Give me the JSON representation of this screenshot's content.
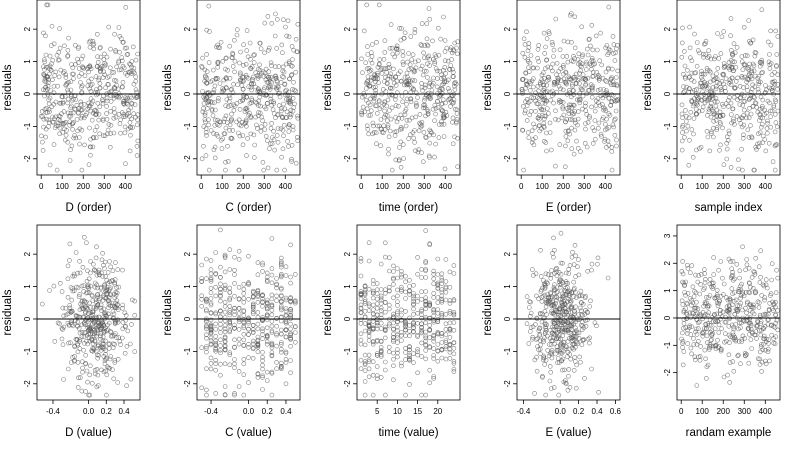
{
  "figure": {
    "rows": 2,
    "cols": 5
  },
  "chart_data": [
    {
      "type": "scatter",
      "xlabel": "D (order)",
      "ylabel": "residuals",
      "xlim": [
        -20,
        470
      ],
      "ylim": [
        -2.5,
        2.9
      ],
      "xticks": [
        0,
        100,
        200,
        300,
        400
      ],
      "xtick_labels": [
        "0",
        "100",
        "200",
        "300",
        "400"
      ],
      "yticks": [
        -2,
        -1,
        0,
        1,
        2
      ],
      "ytick_labels": [
        "-2",
        "-1",
        "0",
        "1",
        "2"
      ],
      "hline": 0,
      "n_points": 460,
      "point_distribution": "uniform-index",
      "seed": 11
    },
    {
      "type": "scatter",
      "xlabel": "C (order)",
      "ylabel": "residuals",
      "xlim": [
        -20,
        470
      ],
      "ylim": [
        -2.5,
        2.9
      ],
      "xticks": [
        0,
        100,
        200,
        300,
        400
      ],
      "xtick_labels": [
        "0",
        "100",
        "200",
        "300",
        "400"
      ],
      "yticks": [
        -2,
        -1,
        0,
        1,
        2
      ],
      "ytick_labels": [
        "-2",
        "-1",
        "0",
        "1",
        "2"
      ],
      "hline": 0,
      "n_points": 460,
      "point_distribution": "uniform-index",
      "seed": 23
    },
    {
      "type": "scatter",
      "xlabel": "time (order)",
      "ylabel": "residuals",
      "xlim": [
        -20,
        470
      ],
      "ylim": [
        -2.5,
        2.9
      ],
      "xticks": [
        0,
        100,
        200,
        300,
        400
      ],
      "xtick_labels": [
        "0",
        "100",
        "200",
        "300",
        "400"
      ],
      "yticks": [
        -2,
        -1,
        0,
        1,
        2
      ],
      "ytick_labels": [
        "-2",
        "-1",
        "0",
        "1",
        "2"
      ],
      "hline": 0,
      "n_points": 460,
      "point_distribution": "uniform-index",
      "seed": 37
    },
    {
      "type": "scatter",
      "xlabel": "E (order)",
      "ylabel": "residuals",
      "xlim": [
        -20,
        470
      ],
      "ylim": [
        -2.5,
        2.9
      ],
      "xticks": [
        0,
        100,
        200,
        300,
        400
      ],
      "xtick_labels": [
        "0",
        "100",
        "200",
        "300",
        "400"
      ],
      "yticks": [
        -2,
        -1,
        0,
        1,
        2
      ],
      "ytick_labels": [
        "-2",
        "-1",
        "0",
        "1",
        "2"
      ],
      "hline": 0,
      "n_points": 460,
      "point_distribution": "uniform-index",
      "seed": 41
    },
    {
      "type": "scatter",
      "xlabel": "sample index",
      "ylabel": "residuals",
      "xlim": [
        -20,
        470
      ],
      "ylim": [
        -2.5,
        2.9
      ],
      "xticks": [
        0,
        100,
        200,
        300,
        400
      ],
      "xtick_labels": [
        "0",
        "100",
        "200",
        "300",
        "400"
      ],
      "yticks": [
        -2,
        -1,
        0,
        1,
        2
      ],
      "ytick_labels": [
        "-2",
        "-1",
        "0",
        "1",
        "2"
      ],
      "hline": 0,
      "n_points": 460,
      "point_distribution": "uniform-index",
      "seed": 53
    },
    {
      "type": "scatter",
      "xlabel": "D (value)",
      "ylabel": "residuals",
      "xlim": [
        -0.58,
        0.58
      ],
      "ylim": [
        -2.5,
        2.9
      ],
      "xticks": [
        -0.4,
        0.0,
        0.2,
        0.4
      ],
      "xtick_labels": [
        "-0.4",
        "0.0",
        "0.2",
        "0.4"
      ],
      "yticks": [
        -2,
        -1,
        0,
        1,
        2
      ],
      "ytick_labels": [
        "-2",
        "-1",
        "0",
        "1",
        "2"
      ],
      "hline": 0,
      "n_points": 460,
      "point_distribution": "normal-around-0.1",
      "seed": 61
    },
    {
      "type": "scatter",
      "xlabel": "C (value)",
      "ylabel": "residuals",
      "xlim": [
        -0.55,
        0.55
      ],
      "ylim": [
        -2.5,
        2.9
      ],
      "xticks": [
        -0.4,
        0.0,
        0.2,
        0.4
      ],
      "xtick_labels": [
        "-0.4",
        "0.0",
        "0.2",
        "0.4"
      ],
      "yticks": [
        -2,
        -1,
        0,
        1,
        2
      ],
      "ytick_labels": [
        "-2",
        "-1",
        "0",
        "1",
        "2"
      ],
      "hline": 0,
      "n_points": 460,
      "point_distribution": "uniform-discrete",
      "seed": 71
    },
    {
      "type": "scatter",
      "xlabel": "time (value)",
      "ylabel": "residuals",
      "xlim": [
        0,
        25.5
      ],
      "ylim": [
        -2.5,
        2.9
      ],
      "xticks": [
        5,
        10,
        15,
        20
      ],
      "xtick_labels": [
        "5",
        "10",
        "15",
        "20"
      ],
      "yticks": [
        -2,
        -1,
        0,
        1,
        2
      ],
      "ytick_labels": [
        "-2",
        "-1",
        "0",
        "1",
        "2"
      ],
      "hline": 0,
      "n_points": 460,
      "point_distribution": "discrete-1-to-24",
      "seed": 83
    },
    {
      "type": "scatter",
      "xlabel": "E (value)",
      "ylabel": "residuals",
      "xlim": [
        -0.47,
        0.65
      ],
      "ylim": [
        -2.5,
        2.9
      ],
      "xticks": [
        -0.4,
        0.0,
        0.2,
        0.4,
        0.6
      ],
      "xtick_labels": [
        "-0.4",
        "0.0",
        "0.2",
        "0.4",
        "0.6"
      ],
      "yticks": [
        -2,
        -1,
        0,
        1,
        2
      ],
      "ytick_labels": [
        "-2",
        "-1",
        "0",
        "1",
        "2"
      ],
      "hline": 0,
      "n_points": 460,
      "point_distribution": "normal-around-0",
      "seed": 97
    },
    {
      "type": "scatter",
      "xlabel": "randam example",
      "ylabel": "residuals",
      "xlim": [
        -20,
        470
      ],
      "ylim": [
        -3.0,
        3.4
      ],
      "xticks": [
        0,
        100,
        200,
        300,
        400
      ],
      "xtick_labels": [
        "0",
        "100",
        "200",
        "300",
        "400"
      ],
      "yticks": [
        -2,
        -1,
        0,
        1,
        2,
        3
      ],
      "ytick_labels": [
        "-2",
        "-1",
        "0",
        "1",
        "2",
        "3"
      ],
      "hline": 0,
      "n_points": 460,
      "point_distribution": "uniform-index",
      "seed": 109
    }
  ],
  "colors": {
    "point_stroke": "#555555",
    "axis": "#000000",
    "reference_line": "#000000",
    "background": "#ffffff"
  }
}
